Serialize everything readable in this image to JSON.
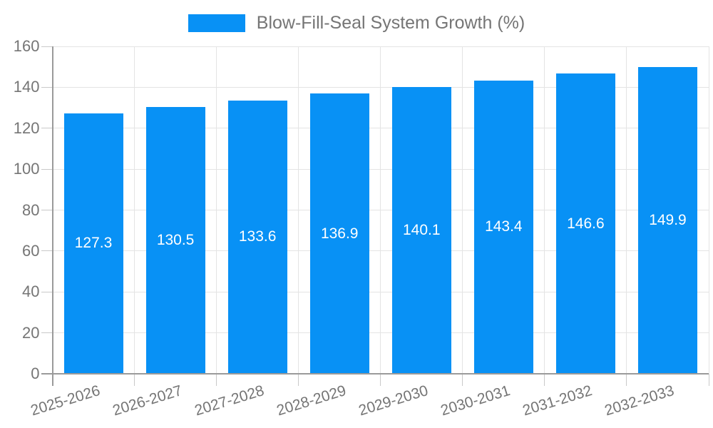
{
  "chart_data": {
    "type": "bar",
    "title": "",
    "legend": {
      "label": "Blow-Fill-Seal System Growth (%)",
      "position": "top"
    },
    "categories": [
      "2025-2026",
      "2026-2027",
      "2027-2028",
      "2028-2029",
      "2029-2030",
      "2030-2031",
      "2031-2032",
      "2032-2033"
    ],
    "series": [
      {
        "name": "Blow-Fill-Seal System Growth (%)",
        "values": [
          127.3,
          130.5,
          133.6,
          136.9,
          140.1,
          143.4,
          146.6,
          149.9
        ]
      }
    ],
    "value_labels": [
      "127.3",
      "130.5",
      "133.6",
      "136.9",
      "140.1",
      "143.4",
      "146.6",
      "149.9"
    ],
    "xlabel": "",
    "ylabel": "",
    "ylim": [
      0,
      160
    ],
    "yticks": [
      0,
      20,
      40,
      60,
      80,
      100,
      120,
      140,
      160
    ],
    "grid": true,
    "legend_position": "top-center",
    "colors": {
      "bar": "#0891f5",
      "grid": "#e4e4e4",
      "axis": "#9a9a9a",
      "tick": "#c9c9c9",
      "text": "#757575",
      "value_label": "#ffffff",
      "background": "#ffffff"
    }
  }
}
